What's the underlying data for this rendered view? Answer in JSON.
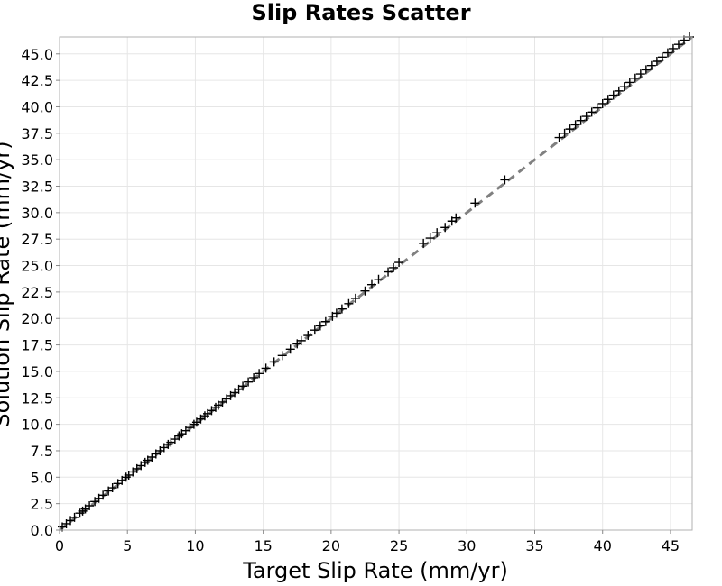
{
  "chart_data": {
    "type": "scatter",
    "title": "Slip Rates Scatter",
    "xlabel": "Target Slip Rate (mm/yr)",
    "ylabel": "Solution Slip Rate (mm/yr)",
    "xlim": [
      0,
      46.6
    ],
    "ylim": [
      0,
      46.6
    ],
    "x_ticks": [
      "0",
      "5",
      "10",
      "15",
      "20",
      "25",
      "30",
      "35",
      "40",
      "45"
    ],
    "x_tick_values": [
      0,
      5,
      10,
      15,
      20,
      25,
      30,
      35,
      40,
      45
    ],
    "y_ticks": [
      "0.0",
      "2.5",
      "5.0",
      "7.5",
      "10.0",
      "12.5",
      "15.0",
      "17.5",
      "20.0",
      "22.5",
      "25.0",
      "27.5",
      "30.0",
      "32.5",
      "35.0",
      "37.5",
      "40.0",
      "42.5",
      "45.0"
    ],
    "y_tick_values": [
      0,
      2.5,
      5,
      7.5,
      10,
      12.5,
      15,
      17.5,
      20,
      22.5,
      25,
      27.5,
      30,
      32.5,
      35,
      37.5,
      40,
      42.5,
      45
    ],
    "grid": true,
    "marker": "+",
    "marker_color": "#000000",
    "reference_line": {
      "style": "dashed",
      "color": "#808080",
      "x": [
        0,
        46.6
      ],
      "y": [
        0,
        46.6
      ]
    },
    "x": [
      0.2,
      0.5,
      0.8,
      1.1,
      1.5,
      1.7,
      1.9,
      2.2,
      2.6,
      2.9,
      3.2,
      3.6,
      3.9,
      4.3,
      4.6,
      4.9,
      5.1,
      5.4,
      5.7,
      6.0,
      6.3,
      6.5,
      6.8,
      7.1,
      7.4,
      7.7,
      8.0,
      8.2,
      8.5,
      8.8,
      9.0,
      9.3,
      9.6,
      9.9,
      10.1,
      10.4,
      10.7,
      10.9,
      11.2,
      11.5,
      11.7,
      12.0,
      12.3,
      12.6,
      12.9,
      13.2,
      13.5,
      13.9,
      14.3,
      14.7,
      15.2,
      15.8,
      16.4,
      17.0,
      17.5,
      17.8,
      18.3,
      18.8,
      19.2,
      19.6,
      20.1,
      20.4,
      20.8,
      21.3,
      21.8,
      22.5,
      23.0,
      23.5,
      24.2,
      24.6,
      25.0,
      26.8,
      27.3,
      27.8,
      28.4,
      28.9,
      29.2,
      30.6,
      32.8,
      36.8,
      37.2,
      37.6,
      38.0,
      38.4,
      38.8,
      39.2,
      39.6,
      40.0,
      40.4,
      40.8,
      41.2,
      41.6,
      42.0,
      42.4,
      42.8,
      43.2,
      43.6,
      44.0,
      44.4,
      44.8,
      45.2,
      45.6,
      46.0,
      46.4
    ],
    "y": [
      0.3,
      0.6,
      0.9,
      1.2,
      1.6,
      1.8,
      2.0,
      2.3,
      2.7,
      3.0,
      3.3,
      3.7,
      4.0,
      4.4,
      4.7,
      5.0,
      5.2,
      5.5,
      5.8,
      6.1,
      6.4,
      6.6,
      6.9,
      7.2,
      7.5,
      7.8,
      8.1,
      8.3,
      8.6,
      8.9,
      9.1,
      9.4,
      9.7,
      10.0,
      10.2,
      10.5,
      10.8,
      11.0,
      11.3,
      11.6,
      11.8,
      12.1,
      12.4,
      12.7,
      13.0,
      13.3,
      13.6,
      14.0,
      14.4,
      14.8,
      15.3,
      15.9,
      16.5,
      17.1,
      17.6,
      17.9,
      18.4,
      18.9,
      19.3,
      19.7,
      20.2,
      20.5,
      20.9,
      21.4,
      21.9,
      22.6,
      23.2,
      23.7,
      24.4,
      24.8,
      25.3,
      27.1,
      27.6,
      28.1,
      28.6,
      29.2,
      29.5,
      30.9,
      33.1,
      37.1,
      37.5,
      37.9,
      38.3,
      38.7,
      39.1,
      39.5,
      39.9,
      40.3,
      40.7,
      41.1,
      41.5,
      41.9,
      42.3,
      42.7,
      43.1,
      43.5,
      43.9,
      44.3,
      44.7,
      45.1,
      45.5,
      45.9,
      46.3,
      46.6
    ]
  }
}
